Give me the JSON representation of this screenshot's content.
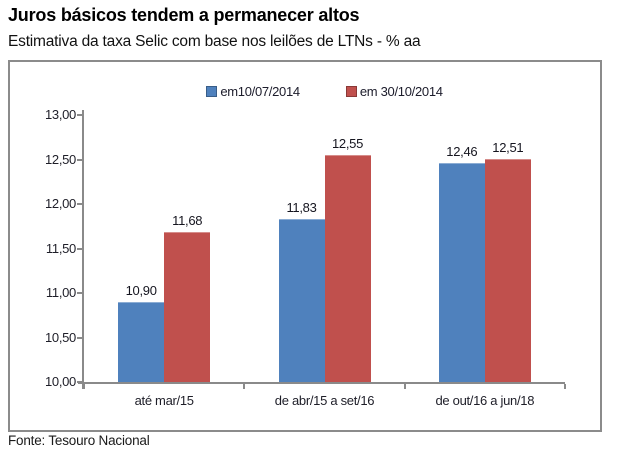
{
  "header": {
    "title": "Juros básicos tendem a permanecer altos",
    "subtitle": "Estimativa da taxa Selic com base nos leilões de LTNs - % aa"
  },
  "footer": {
    "source": "Fonte: Tesouro Nacional"
  },
  "colors": {
    "axis": "#8a8a8a",
    "frame_border": "#8b8b8b",
    "series_blue": "#4F81BD",
    "series_red": "#C0504D",
    "label_text": "#15151f"
  },
  "chart_data": {
    "type": "bar",
    "title": "Juros básicos tendem a permanecer altos",
    "subtitle": "Estimativa da taxa Selic com base nos leilões de LTNs - % aa",
    "categories": [
      "até mar/15",
      "de abr/15 a set/16",
      "de out/16 a jun/18"
    ],
    "series": [
      {
        "name": "em10/07/2014",
        "color": "#4F81BD",
        "values": [
          10.9,
          11.83,
          12.46
        ],
        "labels": [
          "10,90",
          "11,83",
          "12,46"
        ]
      },
      {
        "name": "em 30/10/2014",
        "color": "#C0504D",
        "values": [
          11.68,
          12.55,
          12.51
        ],
        "labels": [
          "11,68",
          "12,55",
          "12,51"
        ]
      }
    ],
    "ylim": [
      10.0,
      13.0
    ],
    "ytick_step": 0.5,
    "yticks": [
      "13,00",
      "12,50",
      "12,00",
      "11,50",
      "11,00",
      "10,50",
      "10,00"
    ],
    "grid": false,
    "legend_position": "top",
    "source": "Fonte: Tesouro Nacional"
  }
}
